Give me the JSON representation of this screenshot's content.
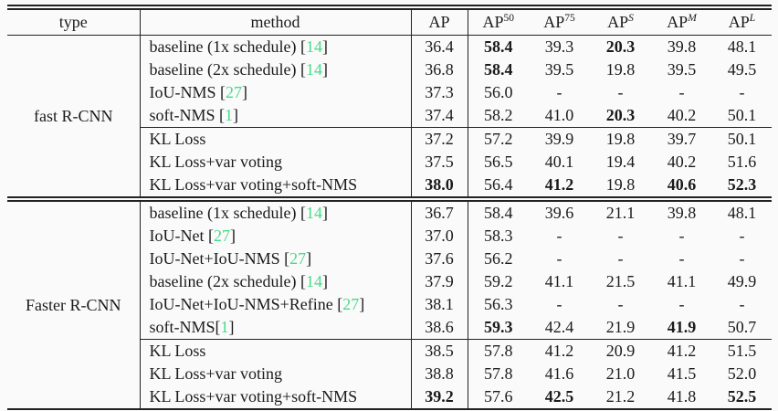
{
  "colors": {
    "citation_green": "#45db88",
    "rule_line": "#222222",
    "text": "#1b1b1b",
    "background": "#fafafa"
  },
  "table": {
    "columns": [
      {
        "label": "type"
      },
      {
        "label": "method"
      },
      {
        "base": "AP",
        "sup": ""
      },
      {
        "base": "AP",
        "sup": "50",
        "italic": false
      },
      {
        "base": "AP",
        "sup": "75",
        "italic": false
      },
      {
        "base": "AP",
        "sup": "S",
        "italic": true
      },
      {
        "base": "AP",
        "sup": "M",
        "italic": true
      },
      {
        "base": "AP",
        "sup": "L",
        "italic": true
      }
    ],
    "groups": [
      {
        "type": "fast R-CNN",
        "subgroups": [
          {
            "rows": [
              {
                "method": "baseline (1x schedule)",
                "cite": "14",
                "nospace": false,
                "values": [
                  "36.4",
                  "58.4",
                  "39.3",
                  "20.3",
                  "39.8",
                  "48.1"
                ],
                "bold": [
                  0,
                  1,
                  0,
                  1,
                  0,
                  0
                ]
              },
              {
                "method": "baseline (2x schedule)",
                "cite": "14",
                "nospace": false,
                "values": [
                  "36.8",
                  "58.4",
                  "39.5",
                  "19.8",
                  "39.5",
                  "49.5"
                ],
                "bold": [
                  0,
                  1,
                  0,
                  0,
                  0,
                  0
                ]
              },
              {
                "method": "IoU-NMS",
                "cite": "27",
                "nospace": false,
                "values": [
                  "37.3",
                  "56.0",
                  "-",
                  "-",
                  "-",
                  "-"
                ],
                "bold": [
                  0,
                  0,
                  0,
                  0,
                  0,
                  0
                ]
              },
              {
                "method": "soft-NMS",
                "cite": "1",
                "nospace": false,
                "values": [
                  "37.4",
                  "58.2",
                  "41.0",
                  "20.3",
                  "40.2",
                  "50.1"
                ],
                "bold": [
                  0,
                  0,
                  0,
                  1,
                  0,
                  0
                ]
              }
            ]
          },
          {
            "rows": [
              {
                "method": "KL Loss",
                "cite": null,
                "values": [
                  "37.2",
                  "57.2",
                  "39.9",
                  "19.8",
                  "39.7",
                  "50.1"
                ],
                "bold": [
                  0,
                  0,
                  0,
                  0,
                  0,
                  0
                ]
              },
              {
                "method": "KL Loss+var voting",
                "cite": null,
                "values": [
                  "37.5",
                  "56.5",
                  "40.1",
                  "19.4",
                  "40.2",
                  "51.6"
                ],
                "bold": [
                  0,
                  0,
                  0,
                  0,
                  0,
                  0
                ]
              },
              {
                "method": "KL Loss+var voting+soft-NMS",
                "cite": null,
                "values": [
                  "38.0",
                  "56.4",
                  "41.2",
                  "19.8",
                  "40.6",
                  "52.3"
                ],
                "bold": [
                  1,
                  0,
                  1,
                  0,
                  1,
                  1
                ]
              }
            ]
          }
        ]
      },
      {
        "type": "Faster R-CNN",
        "subgroups": [
          {
            "rows": [
              {
                "method": "baseline (1x schedule)",
                "cite": "14",
                "nospace": false,
                "values": [
                  "36.7",
                  "58.4",
                  "39.6",
                  "21.1",
                  "39.8",
                  "48.1"
                ],
                "bold": [
                  0,
                  0,
                  0,
                  0,
                  0,
                  0
                ]
              },
              {
                "method": "IoU-Net",
                "cite": "27",
                "nospace": false,
                "values": [
                  "37.0",
                  "58.3",
                  "-",
                  "-",
                  "-",
                  "-"
                ],
                "bold": [
                  0,
                  0,
                  0,
                  0,
                  0,
                  0
                ]
              },
              {
                "method": "IoU-Net+IoU-NMS",
                "cite": "27",
                "nospace": false,
                "values": [
                  "37.6",
                  "56.2",
                  "-",
                  "-",
                  "-",
                  "-"
                ],
                "bold": [
                  0,
                  0,
                  0,
                  0,
                  0,
                  0
                ]
              },
              {
                "method": "baseline (2x schedule)",
                "cite": "14",
                "nospace": false,
                "values": [
                  "37.9",
                  "59.2",
                  "41.1",
                  "21.5",
                  "41.1",
                  "49.9"
                ],
                "bold": [
                  0,
                  0,
                  0,
                  0,
                  0,
                  0
                ]
              },
              {
                "method": "IoU-Net+IoU-NMS+Refine",
                "cite": "27",
                "nospace": false,
                "values": [
                  "38.1",
                  "56.3",
                  "-",
                  "-",
                  "-",
                  "-"
                ],
                "bold": [
                  0,
                  0,
                  0,
                  0,
                  0,
                  0
                ]
              },
              {
                "method": "soft-NMS",
                "cite": "1",
                "nospace": true,
                "values": [
                  "38.6",
                  "59.3",
                  "42.4",
                  "21.9",
                  "41.9",
                  "50.7"
                ],
                "bold": [
                  0,
                  1,
                  0,
                  0,
                  1,
                  0
                ]
              }
            ]
          },
          {
            "rows": [
              {
                "method": "KL Loss",
                "cite": null,
                "values": [
                  "38.5",
                  "57.8",
                  "41.2",
                  "20.9",
                  "41.2",
                  "51.5"
                ],
                "bold": [
                  0,
                  0,
                  0,
                  0,
                  0,
                  0
                ]
              },
              {
                "method": "KL Loss+var voting",
                "cite": null,
                "values": [
                  "38.8",
                  "57.8",
                  "41.6",
                  "21.0",
                  "41.5",
                  "52.0"
                ],
                "bold": [
                  0,
                  0,
                  0,
                  0,
                  0,
                  0
                ]
              },
              {
                "method": "KL Loss+var voting+soft-NMS",
                "cite": null,
                "values": [
                  "39.2",
                  "57.6",
                  "42.5",
                  "21.2",
                  "41.8",
                  "52.5"
                ],
                "bold": [
                  1,
                  0,
                  1,
                  0,
                  0,
                  1
                ]
              }
            ]
          }
        ]
      }
    ]
  }
}
